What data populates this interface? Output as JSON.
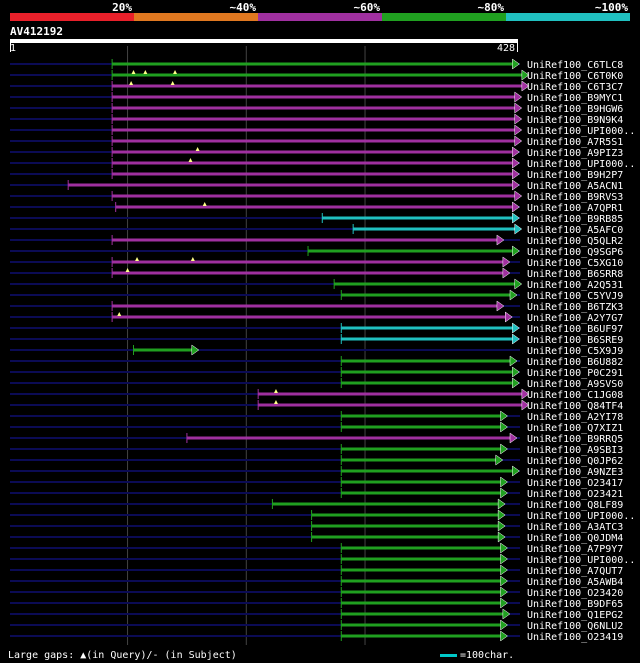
{
  "legend": [
    {
      "label": "20%",
      "color": "#e8202a"
    },
    {
      "label": "~40%",
      "color": "#e07820"
    },
    {
      "label": "~60%",
      "color": "#a030a0"
    },
    {
      "label": "~80%",
      "color": "#20a020"
    },
    {
      "label": "~100%",
      "color": "#20c0c0"
    }
  ],
  "query": {
    "name": "AV412192",
    "start": "1",
    "end": "428",
    "length": 428
  },
  "footer": {
    "gaps": "Large gaps: ▲(in Query)/- (in Subject)",
    "scale": "=100char."
  },
  "colors": {
    "purple": "#a030a0",
    "green": "#20a020",
    "cyan": "#20c0c0",
    "track": "#0b0b55",
    "grid": "#444444",
    "gap": "#ffff88"
  },
  "chart_data": {
    "type": "alignment",
    "x_unit": "query position",
    "x_range": [
      1,
      428
    ],
    "hits": [
      {
        "label": "UniRef100_C6TLC8",
        "color": "green",
        "segments": [
          [
            87,
            430
          ]
        ],
        "qgaps": []
      },
      {
        "label": "UniRef100_C6T0K0",
        "color": "green",
        "segments": [
          [
            87,
            438
          ]
        ],
        "qgaps": [
          105,
          115,
          140
        ]
      },
      {
        "label": "UniRef100_C6T3C7",
        "color": "purple",
        "segments": [
          [
            87,
            438
          ]
        ],
        "qgaps": [
          103,
          138
        ]
      },
      {
        "label": "UniRef100_B9MYC1",
        "color": "purple",
        "segments": [
          [
            87,
            432
          ]
        ],
        "qgaps": []
      },
      {
        "label": "UniRef100_B9HGW6",
        "color": "purple",
        "segments": [
          [
            87,
            432
          ]
        ],
        "qgaps": []
      },
      {
        "label": "UniRef100_B9N9K4",
        "color": "purple",
        "segments": [
          [
            87,
            432
          ]
        ],
        "qgaps": []
      },
      {
        "label": "UniRef100_UPI000..",
        "color": "purple",
        "segments": [
          [
            87,
            432
          ]
        ],
        "qgaps": []
      },
      {
        "label": "UniRef100_A7R5S1",
        "color": "purple",
        "segments": [
          [
            87,
            432
          ]
        ],
        "qgaps": []
      },
      {
        "label": "UniRef100_A9PIZ3",
        "color": "purple",
        "segments": [
          [
            87,
            430
          ]
        ],
        "qgaps": [
          159
        ]
      },
      {
        "label": "UniRef100_UPI000..",
        "color": "purple",
        "segments": [
          [
            87,
            430
          ]
        ],
        "qgaps": [
          153
        ]
      },
      {
        "label": "UniRef100_B9H2P7",
        "color": "purple",
        "segments": [
          [
            87,
            430
          ]
        ],
        "qgaps": []
      },
      {
        "label": "UniRef100_A5ACN1",
        "color": "purple",
        "segments": [
          [
            50,
            430
          ]
        ],
        "qgaps": []
      },
      {
        "label": "UniRef100_B9RVS3",
        "color": "purple",
        "segments": [
          [
            87,
            432
          ]
        ],
        "qgaps": []
      },
      {
        "label": "UniRef100_A7QPR1",
        "color": "purple",
        "segments": [
          [
            90,
            430
          ]
        ],
        "qgaps": [
          165
        ]
      },
      {
        "label": "UniRef100_B9RB85",
        "color": "cyan",
        "segments": [
          [
            264,
            430
          ]
        ],
        "qgaps": []
      },
      {
        "label": "UniRef100_A5AFC0",
        "color": "cyan",
        "segments": [
          [
            290,
            432
          ]
        ],
        "qgaps": []
      },
      {
        "label": "UniRef100_Q5QLR2",
        "color": "purple",
        "segments": [
          [
            87,
            417
          ]
        ],
        "qgaps": []
      },
      {
        "label": "UniRef100_Q9SGP6",
        "color": "green",
        "segments": [
          [
            252,
            430
          ]
        ],
        "qgaps": []
      },
      {
        "label": "UniRef100_C5XG10",
        "color": "purple",
        "segments": [
          [
            87,
            422
          ]
        ],
        "qgaps": [
          108,
          155
        ]
      },
      {
        "label": "UniRef100_B6SRR8",
        "color": "purple",
        "segments": [
          [
            87,
            422
          ]
        ],
        "qgaps": [
          100
        ]
      },
      {
        "label": "UniRef100_A2Q531",
        "color": "green",
        "segments": [
          [
            274,
            432
          ]
        ],
        "qgaps": []
      },
      {
        "label": "UniRef100_C5YVJ9",
        "color": "green",
        "segments": [
          [
            280,
            428
          ]
        ],
        "qgaps": []
      },
      {
        "label": "UniRef100_B6TZK3",
        "color": "purple",
        "segments": [
          [
            87,
            417
          ]
        ],
        "qgaps": []
      },
      {
        "label": "UniRef100_A2Y7G7",
        "color": "purple",
        "segments": [
          [
            87,
            424
          ]
        ],
        "qgaps": [
          93
        ]
      },
      {
        "label": "UniRef100_B6UF97",
        "color": "cyan",
        "segments": [
          [
            280,
            430
          ]
        ],
        "qgaps": []
      },
      {
        "label": "UniRef100_B6SRE9",
        "color": "cyan",
        "segments": [
          [
            280,
            430
          ]
        ],
        "qgaps": []
      },
      {
        "label": "UniRef100_C5X9J9",
        "color": "green",
        "segments": [
          [
            105,
            160
          ]
        ],
        "qgaps": []
      },
      {
        "label": "UniRef100_B6U882",
        "color": "green",
        "segments": [
          [
            280,
            428
          ]
        ],
        "qgaps": []
      },
      {
        "label": "UniRef100_P0C291",
        "color": "green",
        "segments": [
          [
            280,
            430
          ]
        ],
        "qgaps": []
      },
      {
        "label": "UniRef100_A9SVS0",
        "color": "green",
        "segments": [
          [
            280,
            430
          ]
        ],
        "qgaps": []
      },
      {
        "label": "UniRef100_C1JG08",
        "color": "purple",
        "segments": [
          [
            210,
            438
          ]
        ],
        "qgaps": [
          225
        ]
      },
      {
        "label": "UniRef100_Q84TF4",
        "color": "purple",
        "segments": [
          [
            210,
            438
          ]
        ],
        "qgaps": [
          225
        ]
      },
      {
        "label": "UniRef100_A2YI78",
        "color": "green",
        "segments": [
          [
            280,
            420
          ]
        ],
        "qgaps": []
      },
      {
        "label": "UniRef100_Q7XIZ1",
        "color": "green",
        "segments": [
          [
            280,
            420
          ]
        ],
        "qgaps": []
      },
      {
        "label": "UniRef100_B9RRQ5",
        "color": "purple",
        "segments": [
          [
            150,
            428
          ]
        ],
        "qgaps": []
      },
      {
        "label": "UniRef100_A9SBI3",
        "color": "green",
        "segments": [
          [
            280,
            420
          ]
        ],
        "qgaps": []
      },
      {
        "label": "UniRef100_Q0JP62",
        "color": "green",
        "segments": [
          [
            280,
            416
          ]
        ],
        "qgaps": []
      },
      {
        "label": "UniRef100_A9NZE3",
        "color": "green",
        "segments": [
          [
            280,
            430
          ]
        ],
        "qgaps": []
      },
      {
        "label": "UniRef100_O23417",
        "color": "green",
        "segments": [
          [
            280,
            420
          ]
        ],
        "qgaps": []
      },
      {
        "label": "UniRef100_O23421",
        "color": "green",
        "segments": [
          [
            280,
            420
          ]
        ],
        "qgaps": []
      },
      {
        "label": "UniRef100_Q8LF89",
        "color": "green",
        "segments": [
          [
            222,
            418
          ]
        ],
        "qgaps": []
      },
      {
        "label": "UniRef100_UPI000..",
        "color": "green",
        "segments": [
          [
            255,
            418
          ]
        ],
        "qgaps": []
      },
      {
        "label": "UniRef100_A3ATC3",
        "color": "green",
        "segments": [
          [
            255,
            418
          ]
        ],
        "qgaps": []
      },
      {
        "label": "UniRef100_Q0JDM4",
        "color": "green",
        "segments": [
          [
            255,
            418
          ]
        ],
        "qgaps": []
      },
      {
        "label": "UniRef100_A7P9Y7",
        "color": "green",
        "segments": [
          [
            280,
            420
          ]
        ],
        "qgaps": []
      },
      {
        "label": "UniRef100_UPI000..",
        "color": "green",
        "segments": [
          [
            280,
            420
          ]
        ],
        "qgaps": []
      },
      {
        "label": "UniRef100_A7QUT7",
        "color": "green",
        "segments": [
          [
            280,
            420
          ]
        ],
        "qgaps": []
      },
      {
        "label": "UniRef100_A5AWB4",
        "color": "green",
        "segments": [
          [
            280,
            420
          ]
        ],
        "qgaps": []
      },
      {
        "label": "UniRef100_O23420",
        "color": "green",
        "segments": [
          [
            280,
            420
          ]
        ],
        "qgaps": []
      },
      {
        "label": "UniRef100_B9DF65",
        "color": "green",
        "segments": [
          [
            280,
            420
          ]
        ],
        "qgaps": []
      },
      {
        "label": "UniRef100_Q1EPG2",
        "color": "green",
        "segments": [
          [
            280,
            422
          ]
        ],
        "qgaps": []
      },
      {
        "label": "UniRef100_Q6NLU2",
        "color": "green",
        "segments": [
          [
            280,
            420
          ]
        ],
        "qgaps": []
      },
      {
        "label": "UniRef100_O23419",
        "color": "green",
        "segments": [
          [
            280,
            420
          ]
        ],
        "qgaps": []
      }
    ]
  }
}
